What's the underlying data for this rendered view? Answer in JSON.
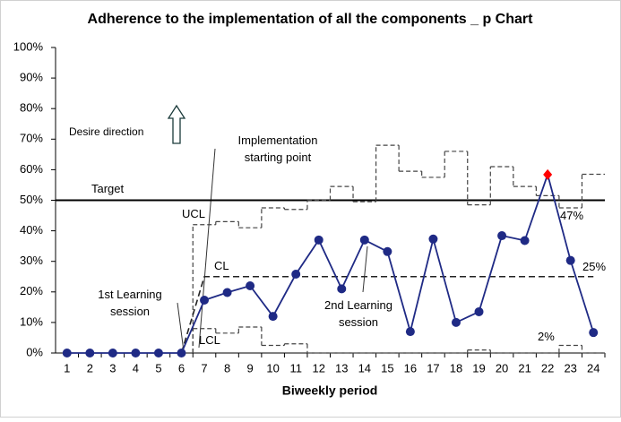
{
  "chart_data": {
    "type": "line",
    "title": "Adherence to the implementation of all the components _ p Chart",
    "x_label": "Biweekly period",
    "categories": [
      "1",
      "2",
      "3",
      "4",
      "5",
      "6",
      "7",
      "8",
      "9",
      "10",
      "11",
      "12",
      "13",
      "14",
      "15",
      "16",
      "17",
      "18",
      "19",
      "20",
      "21",
      "22",
      "23",
      "24"
    ],
    "series": [
      {
        "name": "p",
        "color": "#1f2a85",
        "values": [
          0,
          0,
          0,
          0,
          0,
          0,
          17.3,
          19.8,
          22,
          12,
          25.8,
          37,
          21,
          37,
          33.2,
          7,
          37.3,
          10,
          13.5,
          38.4,
          36.8,
          58.4,
          30.3,
          6.7
        ]
      },
      {
        "name": "UCL",
        "color": "#444444",
        "values": [
          null,
          null,
          null,
          null,
          null,
          null,
          42,
          43,
          41,
          47.5,
          47,
          50,
          54.5,
          49.5,
          68,
          59.5,
          57.5,
          66,
          48.5,
          61,
          54.5,
          51.5,
          47.5,
          58.5
        ]
      },
      {
        "name": "LCL",
        "color": "#444444",
        "values": [
          null,
          null,
          null,
          null,
          null,
          null,
          8,
          6.5,
          8.5,
          2.5,
          3,
          0,
          0,
          0,
          0,
          0,
          0,
          0,
          1,
          0,
          0,
          0,
          2.5,
          0
        ]
      },
      {
        "name": "CL",
        "color": "#222222",
        "values": [
          null,
          null,
          null,
          null,
          null,
          0,
          25,
          25,
          25,
          25,
          25,
          25,
          25,
          25,
          25,
          25,
          25,
          25,
          25,
          25,
          25,
          25,
          25,
          25
        ]
      }
    ],
    "target": {
      "name": "Target",
      "value": 50,
      "color": "#000000"
    },
    "highlight_index": 21,
    "highlight_color": "#ff0000",
    "ylim": [
      0,
      100
    ],
    "yticks": [
      {
        "value": 0,
        "label": "0%"
      },
      {
        "value": 10,
        "label": "10%"
      },
      {
        "value": 20,
        "label": "20%"
      },
      {
        "value": 30,
        "label": "30%"
      },
      {
        "value": 40,
        "label": "40%"
      },
      {
        "value": 50,
        "label": "50%"
      },
      {
        "value": 60,
        "label": "60%"
      },
      {
        "value": 70,
        "label": "70%"
      },
      {
        "value": 80,
        "label": "80%"
      },
      {
        "value": 90,
        "label": "90%"
      },
      {
        "value": 100,
        "label": "100%"
      }
    ],
    "grid": false,
    "annotations": [
      {
        "text": [
          "Desire direction"
        ]
      },
      {
        "text": [
          "Implementation",
          "starting point"
        ]
      },
      {
        "text": [
          "1st Learning",
          "session"
        ]
      },
      {
        "text": [
          "2nd Learning",
          "session"
        ]
      },
      {
        "text": [
          "UCL"
        ]
      },
      {
        "text": [
          "CL"
        ]
      },
      {
        "text": [
          "LCL"
        ]
      },
      {
        "text": [
          "47%"
        ]
      },
      {
        "text": [
          "25%"
        ]
      },
      {
        "text": [
          "2%"
        ]
      }
    ]
  }
}
